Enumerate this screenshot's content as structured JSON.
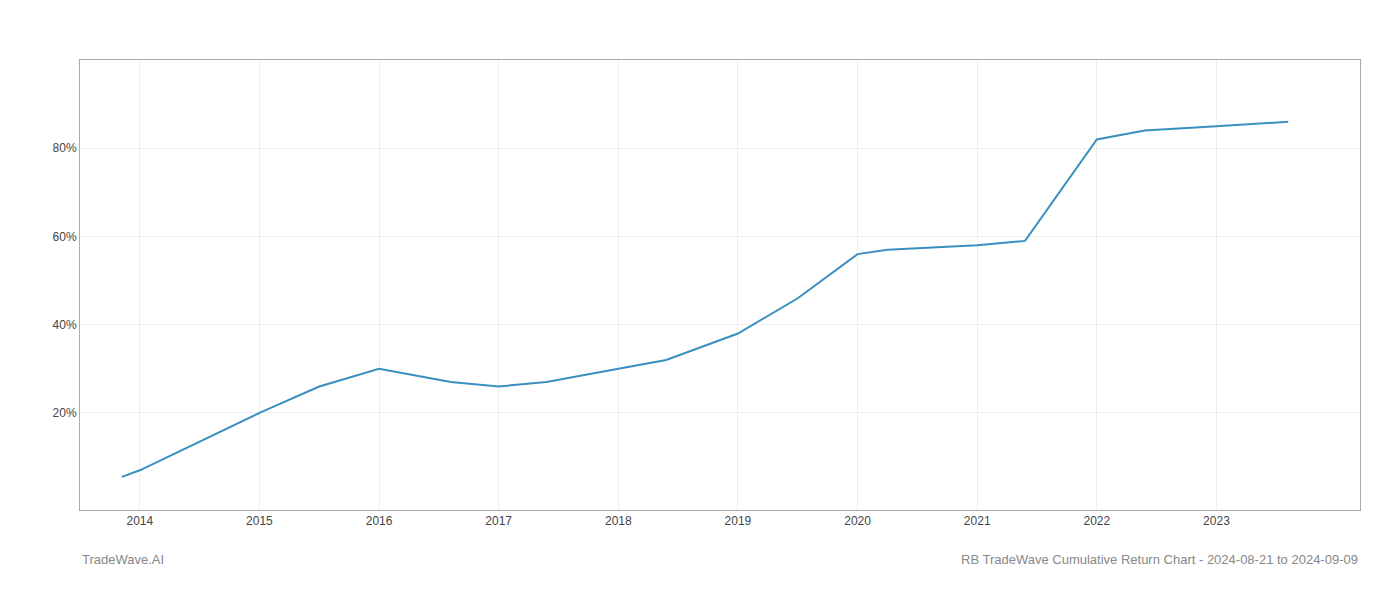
{
  "chart_data": {
    "type": "line",
    "x": [
      2013.85,
      2014.0,
      2015.0,
      2015.5,
      2016.0,
      2016.6,
      2017.0,
      2017.4,
      2018.0,
      2018.4,
      2019.0,
      2019.5,
      2020.0,
      2020.25,
      2021.0,
      2021.4,
      2022.0,
      2022.4,
      2023.0,
      2023.6
    ],
    "values": [
      5.5,
      7,
      20,
      26,
      30,
      27,
      26,
      27,
      30,
      32,
      38,
      46,
      56,
      57,
      58,
      59,
      82,
      84,
      85,
      86
    ],
    "color": "#3a8fc0",
    "xlim": [
      2013.5,
      2024.2
    ],
    "ylim": [
      -2,
      100
    ],
    "xticks": [
      2014,
      2015,
      2016,
      2017,
      2018,
      2019,
      2020,
      2021,
      2022,
      2023
    ],
    "yticks": [
      {
        "value": 20,
        "label": "20%"
      },
      {
        "value": 40,
        "label": "40%"
      },
      {
        "value": 60,
        "label": "60%"
      },
      {
        "value": 80,
        "label": "80%"
      }
    ],
    "grid": true,
    "annotations": [
      "TradeWave.AI",
      "RB TradeWave Cumulative Return Chart - 2024-08-21 to 2024-09-09"
    ]
  }
}
